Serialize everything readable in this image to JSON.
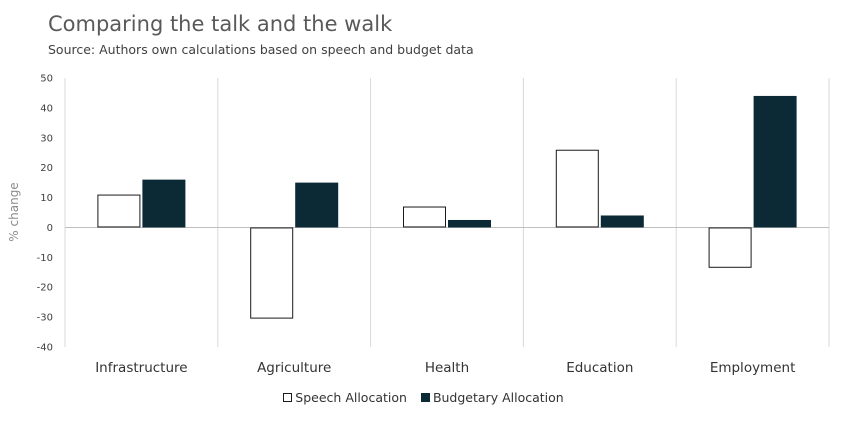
{
  "header": {
    "title": "Comparing the talk and the walk",
    "subtitle": "Source: Authors own calculations  based on speech and budget data"
  },
  "colors": {
    "speech_fill": "#ffffff",
    "speech_stroke": "#1a1a1a",
    "budget_fill": "#0b2a36",
    "axis": "#bfbfbf",
    "grid": "#d9d9d9"
  },
  "chart_data": {
    "type": "bar",
    "title": "Comparing the talk and the walk",
    "subtitle": "Source: Authors own calculations  based on speech and budget data",
    "xlabel": "",
    "ylabel": "% change",
    "ylim": [
      -40,
      50
    ],
    "yticks": [
      "50",
      "40",
      "30",
      "20",
      "10",
      "0",
      "-10",
      "-20",
      "-30",
      "-40"
    ],
    "categories": [
      "Infrastructure",
      "Agriculture",
      "Health",
      "Education",
      "Employment"
    ],
    "series": [
      {
        "name": "Speech Allocation",
        "values": [
          11,
          -30.5,
          7,
          26,
          -13.5
        ]
      },
      {
        "name": "Budgetary Allocation",
        "values": [
          16,
          15,
          2.5,
          4,
          44
        ]
      }
    ],
    "legend_position": "bottom",
    "grid": false
  }
}
